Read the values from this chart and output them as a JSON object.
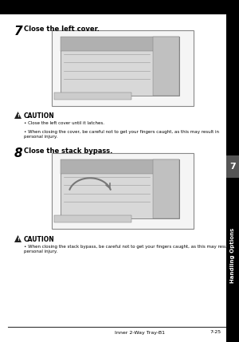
{
  "bg_color": "#ffffff",
  "header_color": "#000000",
  "sidebar_color": "#000000",
  "sidebar_text_color": "#000000",
  "sidebar_label": "Handling Options",
  "sidebar_number": "7",
  "footer_text": "Inner 2-Way Tray-B1",
  "footer_page": "7-25",
  "footer_line_color": "#333333",
  "step7_number": "7",
  "step7_text": "Close the left cover.",
  "step8_number": "8",
  "step8_text": "Close the stack bypass.",
  "caution_label": "CAUTION",
  "caution1_bullets": [
    "Close the left cover until it latches.",
    "When closing the cover, be careful not to get your fingers caught, as this may result in personal injury."
  ],
  "caution2_bullets": [
    "When closing the stack bypass, be careful not to get your fingers caught, as this may result in personal injury."
  ],
  "text_color": "#000000",
  "caution_triangle_color": "#222222",
  "image_border_color": "#888888",
  "image_bg": "#f5f5f5",
  "machine_dark": "#555555",
  "machine_mid": "#aaaaaa",
  "machine_light": "#dddddd"
}
